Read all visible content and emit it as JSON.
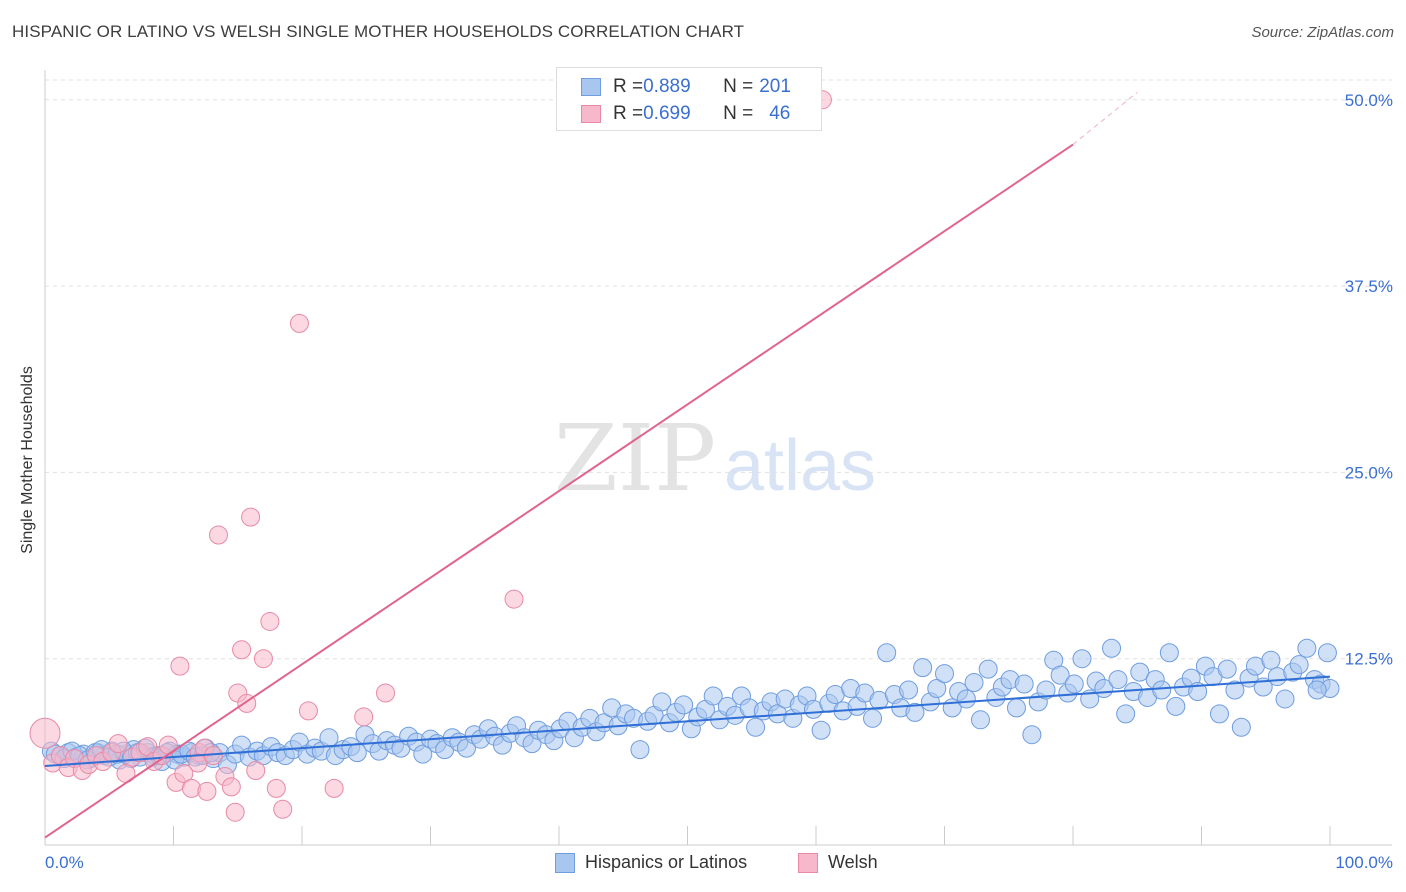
{
  "title": "HISPANIC OR LATINO VS WELSH SINGLE MOTHER HOUSEHOLDS CORRELATION CHART",
  "source": "Source: ZipAtlas.com",
  "watermark": {
    "zip": "ZIP",
    "atlas": "atlas"
  },
  "legend": {
    "rows": [
      {
        "r_label": "R = ",
        "r_value": "0.889",
        "n_label": "N = ",
        "n_value": "201",
        "color": "#a9c6ef",
        "border": "#6f9de0"
      },
      {
        "r_label": "R = ",
        "r_value": "0.699",
        "n_label": "N = ",
        "n_value": "46",
        "color": "#f7b8cb",
        "border": "#e88aa6"
      }
    ]
  },
  "bottom_legend": [
    {
      "label": "Hispanics or Latinos",
      "color": "#a9c6ef",
      "border": "#6f9de0"
    },
    {
      "label": "Welsh",
      "color": "#f7b8cb",
      "border": "#e88aa6"
    }
  ],
  "chart_data": {
    "type": "scatter",
    "title": "HISPANIC OR LATINO VS WELSH SINGLE MOTHER HOUSEHOLDS CORRELATION CHART",
    "xlabel": "",
    "ylabel": "Single Mother Households",
    "xlim": [
      0,
      100
    ],
    "ylim": [
      0,
      52
    ],
    "x_tick_labels": [
      "0.0%",
      "100.0%"
    ],
    "y_ticks": [
      12.5,
      25.0,
      37.5,
      50.0
    ],
    "y_tick_labels": [
      "12.5%",
      "25.0%",
      "37.5%",
      "50.0%"
    ],
    "grid": true,
    "legend_position": "top-center",
    "series": [
      {
        "name": "Hispanics or Latinos",
        "color": "#6f9de0",
        "fill": "#a9c6ef",
        "line_color": "#2f6fd6",
        "trend": {
          "x": [
            0,
            100
          ],
          "y": [
            5.3,
            11.3
          ]
        },
        "points": [
          [
            0.5,
            6.3
          ],
          [
            1.2,
            6.0
          ],
          [
            1.8,
            6.2
          ],
          [
            2.4,
            5.9
          ],
          [
            3.0,
            6.1
          ],
          [
            3.5,
            5.8
          ],
          [
            4.1,
            6.2
          ],
          [
            4.6,
            6.0
          ],
          [
            5.2,
            6.3
          ],
          [
            5.8,
            5.7
          ],
          [
            6.3,
            6.1
          ],
          [
            6.9,
            6.4
          ],
          [
            7.4,
            5.9
          ],
          [
            8.0,
            6.2
          ],
          [
            8.6,
            6.0
          ],
          [
            9.1,
            5.6
          ],
          [
            9.7,
            6.3
          ],
          [
            10.3,
            6.1
          ],
          [
            10.8,
            5.9
          ],
          [
            11.4,
            6.2
          ],
          [
            12.0,
            6.0
          ],
          [
            12.5,
            6.5
          ],
          [
            13.1,
            5.8
          ],
          [
            13.6,
            6.2
          ],
          [
            14.2,
            5.4
          ],
          [
            14.8,
            6.1
          ],
          [
            15.3,
            6.7
          ],
          [
            15.9,
            5.9
          ],
          [
            16.5,
            6.3
          ],
          [
            17.0,
            6.0
          ],
          [
            17.6,
            6.6
          ],
          [
            18.1,
            6.2
          ],
          [
            18.7,
            6.0
          ],
          [
            19.3,
            6.4
          ],
          [
            19.8,
            6.9
          ],
          [
            20.4,
            6.1
          ],
          [
            21.0,
            6.5
          ],
          [
            21.5,
            6.3
          ],
          [
            22.1,
            7.2
          ],
          [
            22.6,
            6.0
          ],
          [
            23.2,
            6.4
          ],
          [
            23.8,
            6.6
          ],
          [
            24.3,
            6.2
          ],
          [
            24.9,
            7.4
          ],
          [
            25.5,
            6.8
          ],
          [
            26.0,
            6.3
          ],
          [
            26.6,
            7.0
          ],
          [
            27.2,
            6.7
          ],
          [
            27.7,
            6.5
          ],
          [
            28.3,
            7.3
          ],
          [
            28.9,
            6.9
          ],
          [
            29.4,
            6.1
          ],
          [
            30.0,
            7.1
          ],
          [
            30.5,
            6.8
          ],
          [
            31.1,
            6.4
          ],
          [
            31.7,
            7.2
          ],
          [
            32.2,
            6.9
          ],
          [
            32.8,
            6.5
          ],
          [
            33.4,
            7.4
          ],
          [
            33.9,
            7.1
          ],
          [
            34.5,
            7.8
          ],
          [
            35.0,
            7.3
          ],
          [
            35.6,
            6.7
          ],
          [
            36.2,
            7.5
          ],
          [
            36.7,
            8.0
          ],
          [
            37.3,
            7.2
          ],
          [
            37.9,
            6.8
          ],
          [
            38.4,
            7.7
          ],
          [
            39.0,
            7.4
          ],
          [
            39.6,
            7.0
          ],
          [
            40.1,
            7.8
          ],
          [
            40.7,
            8.3
          ],
          [
            41.2,
            7.2
          ],
          [
            41.8,
            7.9
          ],
          [
            42.4,
            8.5
          ],
          [
            42.9,
            7.6
          ],
          [
            43.5,
            8.2
          ],
          [
            44.1,
            9.2
          ],
          [
            44.6,
            8.0
          ],
          [
            45.2,
            8.8
          ],
          [
            45.8,
            8.5
          ],
          [
            46.3,
            6.4
          ],
          [
            46.9,
            8.3
          ],
          [
            47.4,
            8.7
          ],
          [
            48.0,
            9.6
          ],
          [
            48.6,
            8.2
          ],
          [
            49.1,
            8.9
          ],
          [
            49.7,
            9.4
          ],
          [
            50.3,
            7.8
          ],
          [
            50.8,
            8.6
          ],
          [
            51.4,
            9.1
          ],
          [
            52.0,
            10.0
          ],
          [
            52.5,
            8.4
          ],
          [
            53.1,
            9.3
          ],
          [
            53.7,
            8.7
          ],
          [
            54.2,
            10.0
          ],
          [
            54.8,
            9.2
          ],
          [
            55.3,
            7.9
          ],
          [
            55.9,
            9.0
          ],
          [
            56.5,
            9.6
          ],
          [
            57.0,
            8.8
          ],
          [
            57.6,
            9.8
          ],
          [
            58.2,
            8.5
          ],
          [
            58.7,
            9.4
          ],
          [
            59.3,
            10.0
          ],
          [
            59.8,
            9.1
          ],
          [
            60.4,
            7.7
          ],
          [
            61.0,
            9.5
          ],
          [
            61.5,
            10.1
          ],
          [
            62.1,
            9.0
          ],
          [
            62.7,
            10.5
          ],
          [
            63.2,
            9.3
          ],
          [
            63.8,
            10.2
          ],
          [
            64.4,
            8.5
          ],
          [
            64.9,
            9.7
          ],
          [
            65.5,
            12.9
          ],
          [
            66.1,
            10.1
          ],
          [
            66.6,
            9.2
          ],
          [
            67.2,
            10.4
          ],
          [
            67.7,
            8.9
          ],
          [
            68.3,
            11.9
          ],
          [
            68.9,
            9.6
          ],
          [
            69.4,
            10.5
          ],
          [
            70.0,
            11.5
          ],
          [
            70.6,
            9.2
          ],
          [
            71.1,
            10.3
          ],
          [
            71.7,
            9.8
          ],
          [
            72.3,
            10.9
          ],
          [
            72.8,
            8.4
          ],
          [
            73.4,
            11.8
          ],
          [
            74.0,
            9.9
          ],
          [
            74.5,
            10.6
          ],
          [
            75.1,
            11.1
          ],
          [
            75.6,
            9.2
          ],
          [
            76.2,
            10.8
          ],
          [
            76.8,
            7.4
          ],
          [
            77.3,
            9.6
          ],
          [
            77.9,
            10.4
          ],
          [
            78.5,
            12.4
          ],
          [
            79.0,
            11.4
          ],
          [
            79.6,
            10.2
          ],
          [
            80.1,
            10.8
          ],
          [
            80.7,
            12.5
          ],
          [
            81.3,
            9.8
          ],
          [
            81.8,
            11.0
          ],
          [
            82.4,
            10.5
          ],
          [
            83.0,
            13.2
          ],
          [
            83.5,
            11.1
          ],
          [
            84.1,
            8.8
          ],
          [
            84.7,
            10.3
          ],
          [
            85.2,
            11.6
          ],
          [
            85.8,
            9.9
          ],
          [
            86.4,
            11.1
          ],
          [
            86.9,
            10.4
          ],
          [
            87.5,
            12.9
          ],
          [
            88.0,
            9.3
          ],
          [
            88.6,
            10.6
          ],
          [
            89.2,
            11.2
          ],
          [
            89.7,
            10.3
          ],
          [
            90.3,
            12.0
          ],
          [
            90.9,
            11.3
          ],
          [
            91.4,
            8.8
          ],
          [
            92.0,
            11.8
          ],
          [
            92.6,
            10.4
          ],
          [
            93.1,
            7.9
          ],
          [
            93.7,
            11.2
          ],
          [
            94.2,
            12.0
          ],
          [
            94.8,
            10.6
          ],
          [
            95.4,
            12.4
          ],
          [
            95.9,
            11.3
          ],
          [
            96.5,
            9.8
          ],
          [
            97.1,
            11.6
          ],
          [
            97.6,
            12.1
          ],
          [
            98.2,
            13.2
          ],
          [
            98.8,
            11.1
          ],
          [
            99.3,
            10.8
          ],
          [
            99.8,
            12.9
          ],
          [
            100.0,
            10.5
          ],
          [
            0.8,
            6.1
          ],
          [
            1.5,
            5.8
          ],
          [
            2.1,
            6.3
          ],
          [
            2.7,
            6.0
          ],
          [
            3.3,
            5.7
          ],
          [
            3.9,
            6.2
          ],
          [
            4.4,
            6.4
          ],
          [
            5.0,
            5.9
          ],
          [
            5.6,
            6.1
          ],
          [
            6.1,
            6.3
          ],
          [
            6.7,
            5.8
          ],
          [
            7.2,
            6.2
          ],
          [
            7.8,
            6.5
          ],
          [
            8.4,
            5.9
          ],
          [
            8.9,
            6.0
          ],
          [
            9.5,
            6.2
          ],
          [
            10.1,
            5.7
          ],
          [
            10.6,
            6.1
          ],
          [
            11.2,
            6.3
          ],
          [
            11.7,
            5.9
          ],
          [
            12.3,
            6.0
          ],
          [
            12.9,
            6.2
          ],
          [
            99.0,
            10.4
          ]
        ]
      },
      {
        "name": "Welsh",
        "color": "#e88aa6",
        "fill": "#f7b8cb",
        "line_color": "#e0648d",
        "trend": {
          "x": [
            0,
            80
          ],
          "y": [
            0.5,
            47.0
          ],
          "dashed_extension": {
            "x": [
              80,
              85
            ],
            "y": [
              47.0,
              50.5
            ]
          }
        },
        "points": [
          [
            0.0,
            7.5
          ],
          [
            0.6,
            5.5
          ],
          [
            1.2,
            6.0
          ],
          [
            1.8,
            5.2
          ],
          [
            2.3,
            5.8
          ],
          [
            2.9,
            5.0
          ],
          [
            3.4,
            5.4
          ],
          [
            4.0,
            6.0
          ],
          [
            4.5,
            5.6
          ],
          [
            5.2,
            6.2
          ],
          [
            5.7,
            6.8
          ],
          [
            6.3,
            4.8
          ],
          [
            6.8,
            5.9
          ],
          [
            7.4,
            6.2
          ],
          [
            8.0,
            6.6
          ],
          [
            8.5,
            5.6
          ],
          [
            9.1,
            6.0
          ],
          [
            9.6,
            6.7
          ],
          [
            10.2,
            4.2
          ],
          [
            10.8,
            4.8
          ],
          [
            11.4,
            3.8
          ],
          [
            12.0,
            6.2
          ],
          [
            12.4,
            6.5
          ],
          [
            10.5,
            12.0
          ],
          [
            11.9,
            5.5
          ],
          [
            12.6,
            3.6
          ],
          [
            13.1,
            6.0
          ],
          [
            13.5,
            20.8
          ],
          [
            14.0,
            4.6
          ],
          [
            14.5,
            3.9
          ],
          [
            14.8,
            2.2
          ],
          [
            15.0,
            10.2
          ],
          [
            15.3,
            13.1
          ],
          [
            15.7,
            9.5
          ],
          [
            16.0,
            22.0
          ],
          [
            16.4,
            5.0
          ],
          [
            17.0,
            12.5
          ],
          [
            17.5,
            15.0
          ],
          [
            18.0,
            3.8
          ],
          [
            18.5,
            2.4
          ],
          [
            19.8,
            35.0
          ],
          [
            20.5,
            9.0
          ],
          [
            22.5,
            3.8
          ],
          [
            24.8,
            8.6
          ],
          [
            26.5,
            10.2
          ],
          [
            36.5,
            16.5
          ],
          [
            60.5,
            50.0
          ]
        ]
      }
    ]
  }
}
